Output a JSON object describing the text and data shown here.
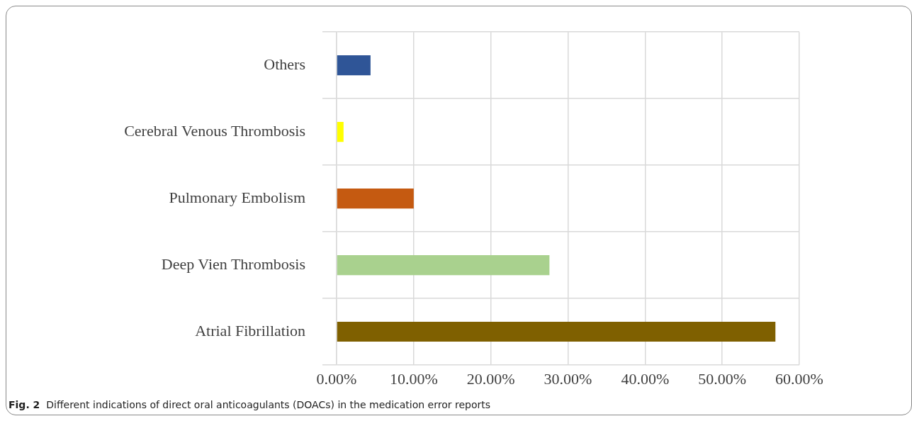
{
  "chart_data": {
    "type": "bar",
    "orientation": "horizontal",
    "categories": [
      "Others",
      "Cerebral Venous Thrombosis",
      "Pulmonary Embolism",
      "Deep Vien Thrombosis",
      "Atrial Fibrillation"
    ],
    "values": [
      4.4,
      0.9,
      10.0,
      27.6,
      56.9
    ],
    "colors": [
      "#2f5597",
      "#ffff00",
      "#c55a11",
      "#a9d18e",
      "#7f6000"
    ],
    "xlim": [
      0,
      60
    ],
    "xticks": [
      {
        "value": 0,
        "label": "0.00%"
      },
      {
        "value": 10,
        "label": "10.00%"
      },
      {
        "value": 20,
        "label": "20.00%"
      },
      {
        "value": 30,
        "label": "30.00%"
      },
      {
        "value": 40,
        "label": "40.00%"
      },
      {
        "value": 50,
        "label": "50.00%"
      },
      {
        "value": 60,
        "label": "60.00%"
      }
    ],
    "grid": true,
    "annotations": [
      "Fig. 2  Different indications of direct oral anticoagulants (DOACs) in the medication error reports"
    ]
  }
}
